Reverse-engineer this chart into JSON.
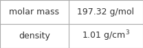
{
  "rows": [
    {
      "label": "molar mass",
      "value": "197.32 g/mol"
    },
    {
      "label": "density",
      "value": "1.01 g/cm³"
    }
  ],
  "background_color": "#ffffff",
  "border_color": "#aaaaaa",
  "text_color": "#333333",
  "font_size": 9,
  "col_split": 0.48
}
